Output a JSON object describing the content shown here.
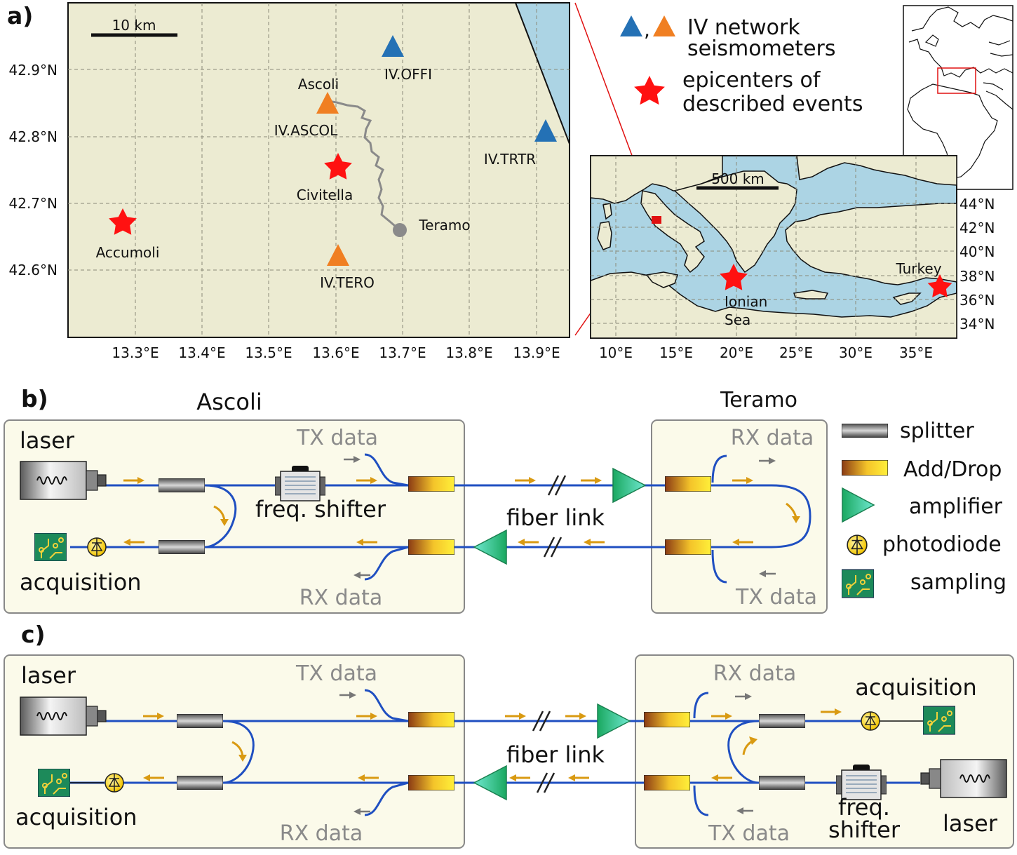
{
  "panels": {
    "a": "a)",
    "b": "b)",
    "c": "c)"
  },
  "map_local": {
    "scale_label": "10 km",
    "lat_ticks": [
      "42.9°N",
      "42.8°N",
      "42.7°N",
      "42.6°N"
    ],
    "lon_ticks": [
      "13.3°E",
      "13.4°E",
      "13.5°E",
      "13.6°E",
      "13.7°E",
      "13.8°E",
      "13.9°E"
    ],
    "stations": [
      {
        "name": "IV.OFFI",
        "color": "#2471b5"
      },
      {
        "name": "IV.ASCOL",
        "color": "#f07f22"
      },
      {
        "name": "IV.TRTR",
        "color": "#2471b5"
      },
      {
        "name": "IV.TERO",
        "color": "#f07f22"
      }
    ],
    "epicenters": [
      "Civitella",
      "Accumoli"
    ],
    "towns": [
      "Ascoli",
      "Teramo"
    ]
  },
  "legend_map": {
    "seismometers_line1": "IV network",
    "seismometers_line2": "seismometers",
    "comma": ",",
    "epicenters_line1": "epicenters of",
    "epicenters_line2": "described events"
  },
  "map_regional": {
    "scale_label": "500 km",
    "lat_ticks": [
      "44°N",
      "42°N",
      "40°N",
      "38°N",
      "36°N",
      "34°N"
    ],
    "lon_ticks": [
      "10°E",
      "15°E",
      "20°E",
      "25°E",
      "30°E",
      "35°E"
    ],
    "labels": {
      "ionian_1": "Ionian",
      "ionian_2": "Sea",
      "turkey": "Turkey"
    }
  },
  "panel_b": {
    "site_left": "Ascoli",
    "site_right": "Teramo",
    "laser": "laser",
    "acquisition": "acquisition",
    "freq_shifter": "freq. shifter",
    "tx_left": "TX data",
    "rx_left": "RX data",
    "rx_right": "RX data",
    "tx_right": "TX data",
    "fiber_link": "fiber link"
  },
  "legend_b": {
    "splitter": "splitter",
    "add_drop": "Add/Drop",
    "amplifier": "amplifier",
    "photodiode": "photodiode",
    "sampling": "sampling"
  },
  "panel_c": {
    "laser_left": "laser",
    "acquisition_left": "acquisition",
    "tx_left": "TX data",
    "rx_left": "RX data",
    "fiber_link": "fiber link",
    "rx_right": "RX data",
    "tx_right": "TX data",
    "acquisition_right": "acquisition",
    "freq_line1": "freq.",
    "freq_line2": "shifter",
    "laser_right": "laser"
  },
  "colors": {
    "fiber": "#1f4fc1",
    "arrow": "#d99a12",
    "data_arrow": "#777777",
    "map_land": "#ecebd2",
    "sea": "#acd4e4",
    "box_fill": "#fbfaea",
    "star": "#ff1111"
  }
}
